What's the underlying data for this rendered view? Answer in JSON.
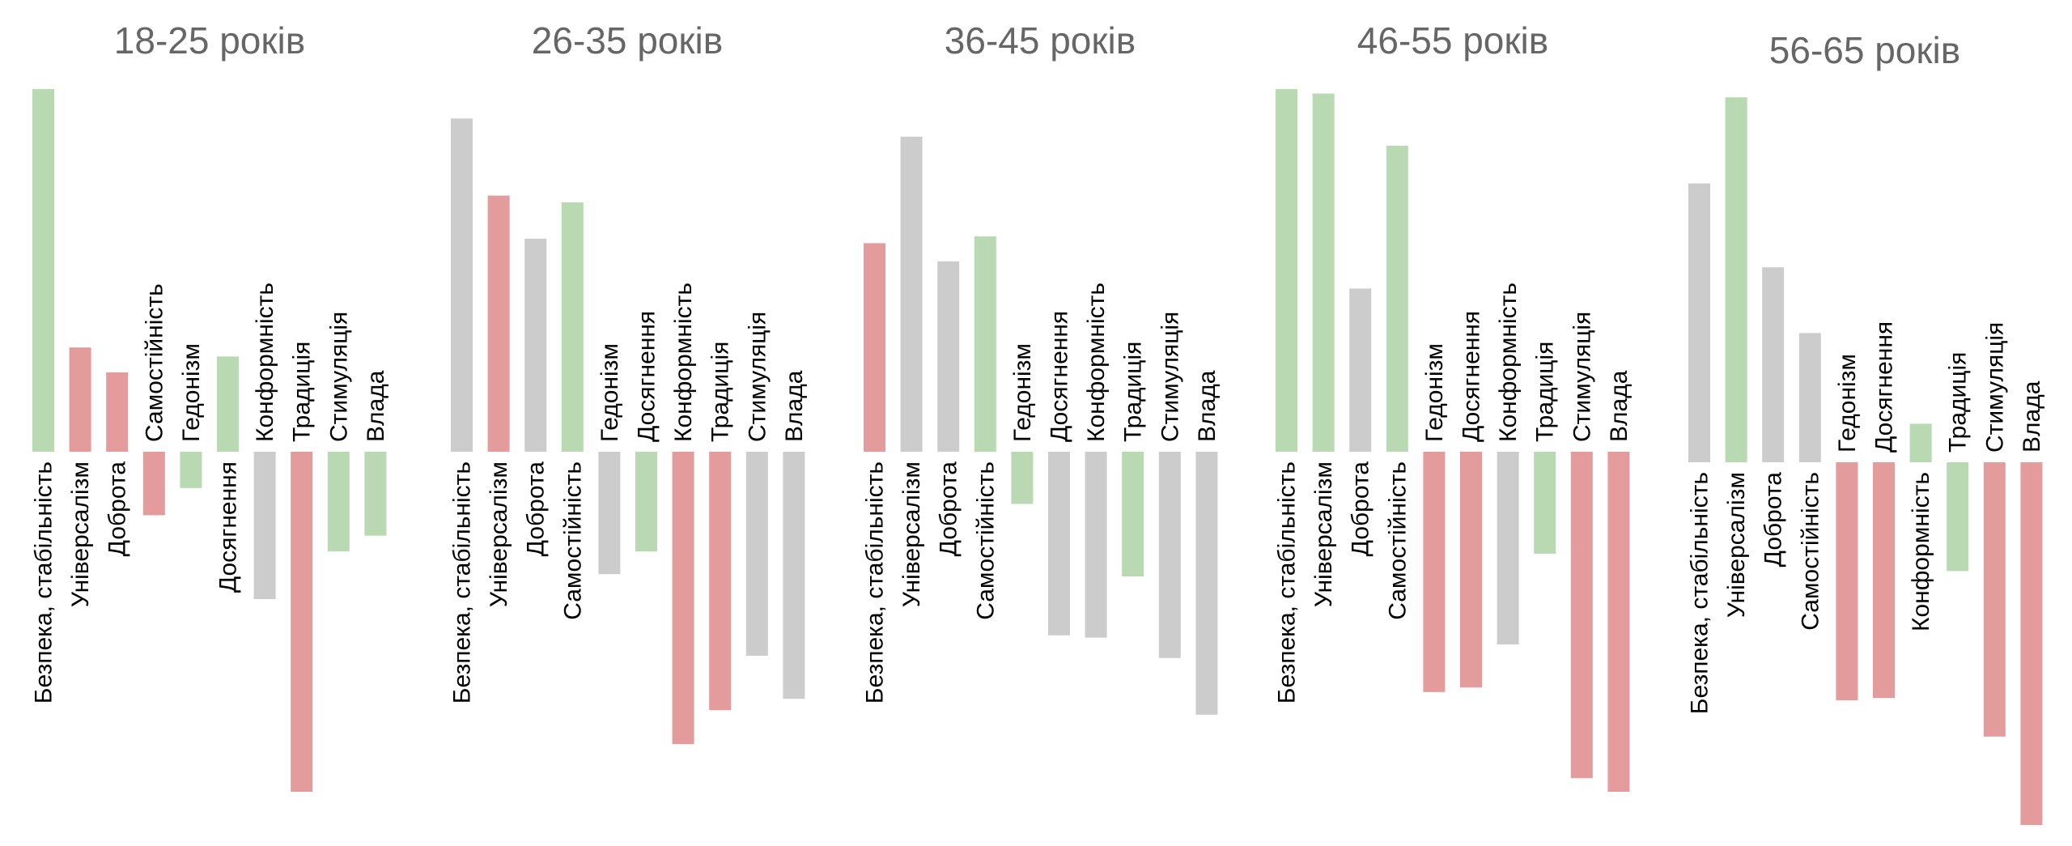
{
  "colors": {
    "green": "#b8d9b2",
    "red": "#e39b9b",
    "gray": "#cccccc",
    "title": "#666666"
  },
  "chart_data": [
    {
      "type": "bar",
      "title": "18-25 років",
      "categories": [
        "Безпека, стабільність",
        "Універсалізм",
        "Доброта",
        "Самостійність",
        "Гедонізм",
        "Досягнення",
        "Конформність",
        "Традиція",
        "Стимуляція",
        "Влада"
      ],
      "values": [
        1.6,
        0.46,
        0.35,
        -0.28,
        -0.16,
        0.42,
        -0.65,
        -1.5,
        -0.44,
        -0.37
      ],
      "colors": [
        "green",
        "red",
        "red",
        "red",
        "green",
        "green",
        "gray",
        "red",
        "green",
        "green"
      ]
    },
    {
      "type": "bar",
      "title": "26-35 років",
      "categories": [
        "Безпека, стабільність",
        "Універсалізм",
        "Доброта",
        "Самостійність",
        "Гедонізм",
        "Досягнення",
        "Конформність",
        "Традиція",
        "Стимуляція",
        "Влада"
      ],
      "values": [
        1.47,
        1.13,
        0.94,
        1.1,
        -0.54,
        -0.44,
        -1.29,
        -1.14,
        -0.9,
        -1.09
      ],
      "colors": [
        "gray",
        "red",
        "gray",
        "green",
        "gray",
        "green",
        "red",
        "red",
        "gray",
        "gray"
      ]
    },
    {
      "type": "bar",
      "title": "36-45 років",
      "categories": [
        "Безпека, стабільність",
        "Універсалізм",
        "Доброта",
        "Самостійність",
        "Гедонізм",
        "Досягнення",
        "Конформність",
        "Традиція",
        "Стимуляція",
        "Влада"
      ],
      "values": [
        0.92,
        1.39,
        0.84,
        0.95,
        -0.23,
        -0.81,
        -0.82,
        -0.55,
        -0.91,
        -1.16
      ],
      "colors": [
        "red",
        "gray",
        "gray",
        "green",
        "green",
        "gray",
        "gray",
        "green",
        "gray",
        "gray"
      ]
    },
    {
      "type": "bar",
      "title": "46-55 років",
      "categories": [
        "Безпека, стабільність",
        "Універсалізм",
        "Доброта",
        "Самостійність",
        "Гедонізм",
        "Досягнення",
        "Конформність",
        "Традиція",
        "Стимуляція",
        "Влада"
      ],
      "values": [
        1.6,
        1.58,
        0.72,
        1.35,
        -1.06,
        -1.04,
        -0.85,
        -0.45,
        -1.44,
        -1.5
      ],
      "colors": [
        "green",
        "green",
        "gray",
        "green",
        "red",
        "red",
        "gray",
        "green",
        "red",
        "red"
      ]
    },
    {
      "type": "bar",
      "title": "56-65 років",
      "categories": [
        "Безпека, стабільність",
        "Універсалізм",
        "Доброта",
        "Самостійність",
        "Гедонізм",
        "Досягнення",
        "Конформність",
        "Традиція",
        "Стимуляція",
        "Влада"
      ],
      "values": [
        1.23,
        1.61,
        0.86,
        0.57,
        -1.05,
        -1.04,
        0.17,
        -0.48,
        -1.21,
        -1.6
      ],
      "colors": [
        "gray",
        "green",
        "gray",
        "gray",
        "red",
        "red",
        "green",
        "green",
        "red",
        "red"
      ]
    }
  ]
}
